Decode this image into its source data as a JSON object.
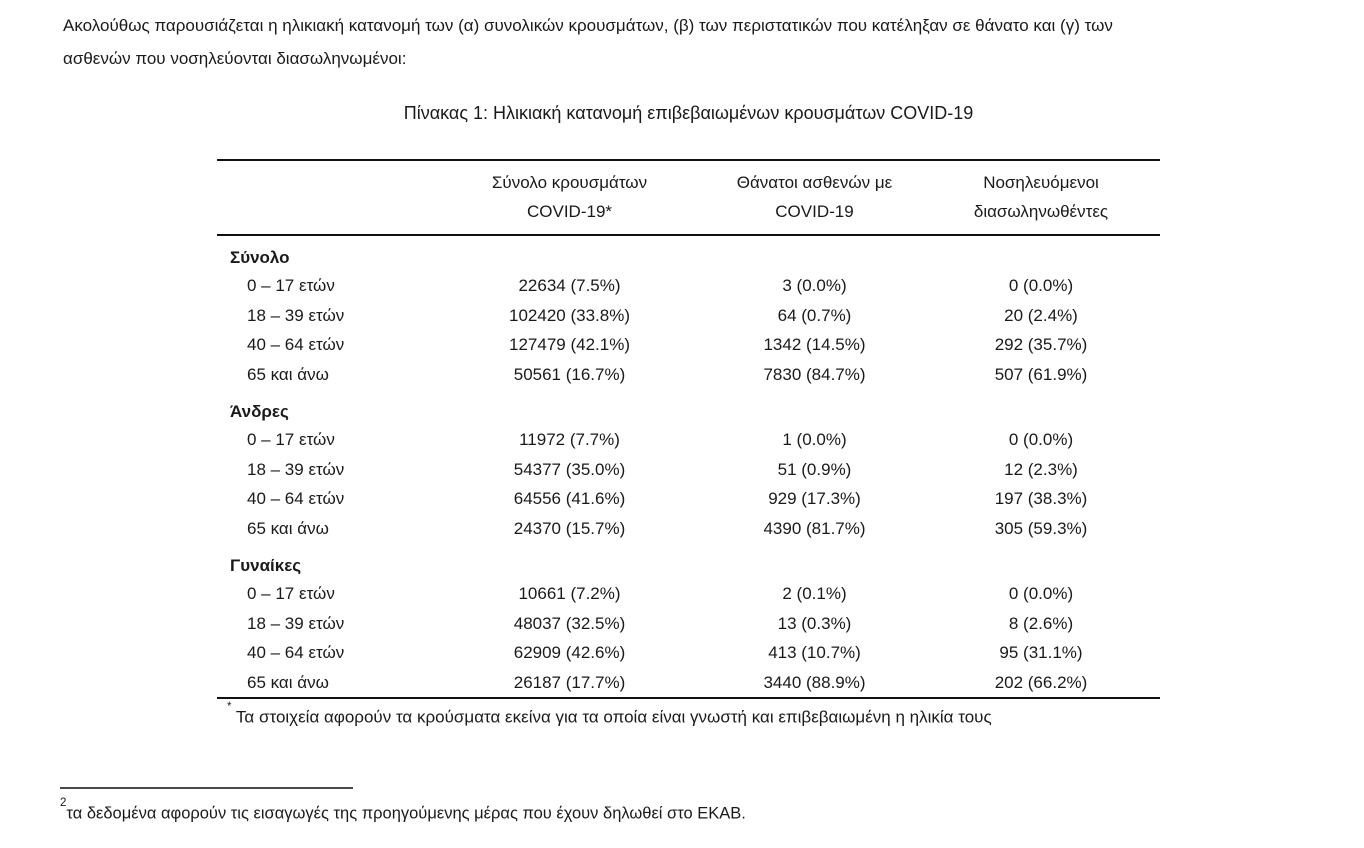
{
  "page": {
    "intro_lines": [
      "Ακολούθως παρουσιάζεται η ηλικιακή κατανομή των (α) συνολικών κρουσμάτων, (β) των περιστατικών που κατέληξαν σε θάνατο και (γ) των",
      "ασθενών που νοσηλεύονται διασωληνωμένοι:"
    ],
    "table_title": "Πίνακας 1: Ηλικιακή κατανομή επιβεβαιωμένων κρουσμάτων COVID-19"
  },
  "table": {
    "headers": [
      {
        "lines": []
      },
      {
        "lines": [
          "Σύνολο κρουσμάτων",
          "COVID-19*"
        ]
      },
      {
        "lines": [
          "Θάνατοι ασθενών με",
          "COVID-19"
        ]
      },
      {
        "lines": [
          "Νοσηλευόμενοι",
          "διασωληνωθέντες"
        ]
      }
    ],
    "sections": [
      {
        "label": "Σύνολο",
        "rows": [
          {
            "age": "0 – 17 ετών",
            "cases": "22634 (7.5%)",
            "deaths": "3 (0.0%)",
            "intubated": "0 (0.0%)"
          },
          {
            "age": "18 – 39 ετών",
            "cases": "102420 (33.8%)",
            "deaths": "64 (0.7%)",
            "intubated": "20 (2.4%)"
          },
          {
            "age": "40 – 64 ετών",
            "cases": "127479 (42.1%)",
            "deaths": "1342 (14.5%)",
            "intubated": "292 (35.7%)"
          },
          {
            "age": "65 και άνω",
            "cases": "50561 (16.7%)",
            "deaths": "7830 (84.7%)",
            "intubated": "507 (61.9%)"
          }
        ]
      },
      {
        "label": "Άνδρες",
        "rows": [
          {
            "age": "0 – 17 ετών",
            "cases": "11972 (7.7%)",
            "deaths": "1 (0.0%)",
            "intubated": "0 (0.0%)"
          },
          {
            "age": "18 – 39 ετών",
            "cases": "54377 (35.0%)",
            "deaths": "51 (0.9%)",
            "intubated": "12 (2.3%)"
          },
          {
            "age": "40 – 64 ετών",
            "cases": "64556 (41.6%)",
            "deaths": "929 (17.3%)",
            "intubated": "197 (38.3%)"
          },
          {
            "age": "65 και άνω",
            "cases": "24370 (15.7%)",
            "deaths": "4390 (81.7%)",
            "intubated": "305 (59.3%)"
          }
        ]
      },
      {
        "label": "Γυναίκες",
        "rows": [
          {
            "age": "0 – 17 ετών",
            "cases": "10661 (7.2%)",
            "deaths": "2 (0.1%)",
            "intubated": "0 (0.0%)"
          },
          {
            "age": "18 – 39 ετών",
            "cases": "48037 (32.5%)",
            "deaths": "13 (0.3%)",
            "intubated": "8 (2.6%)"
          },
          {
            "age": "40 – 64 ετών",
            "cases": "62909 (42.6%)",
            "deaths": "413 (10.7%)",
            "intubated": "95 (31.1%)"
          },
          {
            "age": "65 και άνω",
            "cases": "26187 (17.7%)",
            "deaths": "3440 (88.9%)",
            "intubated": "202 (66.2%)"
          }
        ]
      }
    ],
    "footnote_marker": "*",
    "footnote_text": "Τα στοιχεία αφορούν τα κρούσματα εκείνα για τα οποία είναι γνωστή και επιβεβαιωμένη η ηλικία τους"
  },
  "bottom_footnote": {
    "marker": "2",
    "text": "τα δεδομένα αφορούν τις εισαγωγές της προηγούμενης μέρας που έχουν δηλωθεί στο ΕΚΑΒ."
  },
  "colors": {
    "text": "#1a1a1a",
    "rule": "#111111",
    "footnote_rule": "#4a4a4a",
    "background": "#ffffff"
  }
}
